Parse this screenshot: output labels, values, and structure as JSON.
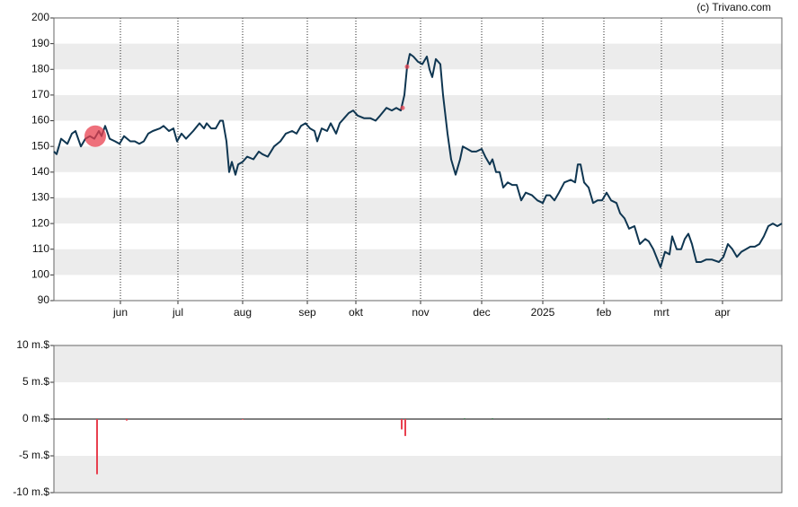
{
  "watermark": "(c) Trivano.com",
  "chart_data": [
    {
      "type": "line",
      "color": "#0f3651",
      "xlim": [
        0,
        405
      ],
      "ylim": [
        90,
        200
      ],
      "yticks": [
        90,
        100,
        110,
        120,
        130,
        140,
        150,
        160,
        170,
        180,
        190,
        200
      ],
      "xticks": [
        {
          "value": 37,
          "label": "jun"
        },
        {
          "value": 69,
          "label": "jul"
        },
        {
          "value": 105,
          "label": "aug"
        },
        {
          "value": 141,
          "label": "sep"
        },
        {
          "value": 168,
          "label": "okt"
        },
        {
          "value": 204,
          "label": "nov"
        },
        {
          "value": 238,
          "label": "dec"
        },
        {
          "value": 272,
          "label": "2025"
        },
        {
          "value": 306,
          "label": "feb"
        },
        {
          "value": 338,
          "label": "mrt"
        },
        {
          "value": 372,
          "label": "apr"
        }
      ],
      "shaded_bands": [
        [
          180,
          190
        ],
        [
          160,
          170
        ],
        [
          140,
          150
        ],
        [
          120,
          130
        ],
        [
          100,
          110
        ]
      ],
      "x": [
        0,
        1.5,
        4,
        7.5,
        10,
        12,
        15,
        17.5,
        20,
        22.5,
        25,
        26.5,
        28.5,
        31,
        34,
        36.5,
        39,
        42.5,
        45,
        47.5,
        50,
        52.5,
        55,
        59,
        61,
        64,
        66.5,
        68.5,
        71,
        73.5,
        77.5,
        81,
        83.5,
        85,
        87.5,
        90,
        92.5,
        94,
        96,
        97.5,
        99,
        101,
        102.5,
        105,
        107.5,
        111,
        114,
        116,
        119,
        122.5,
        126,
        129,
        132.5,
        135,
        137.5,
        140,
        142.5,
        145,
        146.5,
        149,
        152,
        154,
        157,
        159,
        161.5,
        164,
        166.5,
        169,
        172.5,
        176,
        179,
        181.5,
        185,
        188,
        190.5,
        193,
        195,
        196.5,
        198,
        200,
        202.5,
        205,
        207.5,
        209,
        210.5,
        212.5,
        215,
        216.5,
        219,
        221,
        223.5,
        226,
        227.5,
        230,
        232.5,
        235,
        238,
        240,
        242.5,
        244,
        246,
        248,
        250,
        252.5,
        255,
        257.5,
        260,
        262.5,
        266,
        269,
        272,
        274,
        276,
        278.5,
        281,
        284,
        287.5,
        290,
        291.5,
        293,
        295,
        297.5,
        300,
        302.5,
        305,
        307.5,
        310,
        313,
        315,
        317.5,
        320,
        323,
        326,
        329,
        331,
        333.5,
        337.5,
        340,
        342.5,
        344,
        346.5,
        349,
        351,
        353,
        355,
        357.5,
        360,
        363,
        366,
        370,
        372.5,
        375,
        377.5,
        380,
        382.5,
        385,
        387.5,
        390,
        392.5,
        395,
        397.5,
        400,
        402.5,
        405
      ],
      "values": [
        148,
        147,
        153,
        151,
        155,
        156,
        150,
        153,
        154,
        153,
        156,
        154,
        158,
        153,
        152,
        151,
        154,
        152,
        152,
        151,
        152,
        155,
        156,
        157,
        158,
        156,
        157,
        152,
        155,
        153,
        156,
        159,
        157,
        159,
        157,
        157,
        160,
        160,
        152,
        140,
        144,
        139,
        143,
        144,
        146,
        145,
        148,
        147,
        146,
        150,
        152,
        155,
        156,
        155,
        158,
        159,
        157,
        156,
        152,
        157,
        156,
        159,
        155,
        159,
        161,
        163,
        164,
        162,
        161,
        161,
        160,
        162,
        165,
        164,
        165,
        164,
        170,
        181,
        186,
        185,
        183,
        182,
        185,
        180,
        177,
        184,
        182,
        170,
        155,
        145,
        139,
        145,
        150,
        149,
        148,
        148,
        149,
        146,
        143,
        145,
        140,
        140,
        134,
        136,
        135,
        135,
        129,
        132,
        131,
        129,
        128,
        131,
        131,
        129,
        132,
        136,
        137,
        136,
        143,
        143,
        136,
        134,
        128,
        129,
        129,
        132,
        129,
        128,
        124,
        122,
        118,
        119,
        112,
        114,
        113,
        110,
        103,
        109,
        108,
        115,
        110,
        110,
        114,
        116,
        112,
        105,
        105,
        106,
        106,
        105,
        107,
        112,
        110,
        107,
        109,
        110,
        111,
        111,
        112,
        115,
        119,
        120,
        119,
        120
      ],
      "points": {
        "color": "#e8404f",
        "x": [
          23,
          194,
          196.5
        ],
        "values": [
          154,
          165,
          181
        ],
        "sizes": [
          12,
          2.5,
          2.5
        ]
      }
    },
    {
      "type": "bar",
      "xlim": [
        0,
        405
      ],
      "ylim": [
        -10,
        10
      ],
      "yticks": [
        {
          "value": -10,
          "label": "-10 m.$"
        },
        {
          "value": -5,
          "label": "-5 m.$"
        },
        {
          "value": 0,
          "label": "0 m.$"
        },
        {
          "value": 5,
          "label": "5 m.$"
        },
        {
          "value": 10,
          "label": "10 m.$"
        }
      ],
      "shaded_bands": [
        [
          5,
          10
        ],
        [
          -10,
          -5
        ]
      ],
      "x": [
        24,
        40.5,
        105,
        193.5,
        195.5,
        228.5,
        244,
        308.5
      ],
      "values": [
        -7.5,
        -0.2,
        -0.1,
        -1.4,
        -2.3,
        0.1,
        0.1,
        0.1
      ],
      "colors": [
        "#e8404f",
        "#e8404f",
        "#e8404f",
        "#e8404f",
        "#e8404f",
        "#2a6a3a",
        "#2a6a3a",
        "#2a6a3a"
      ]
    }
  ]
}
